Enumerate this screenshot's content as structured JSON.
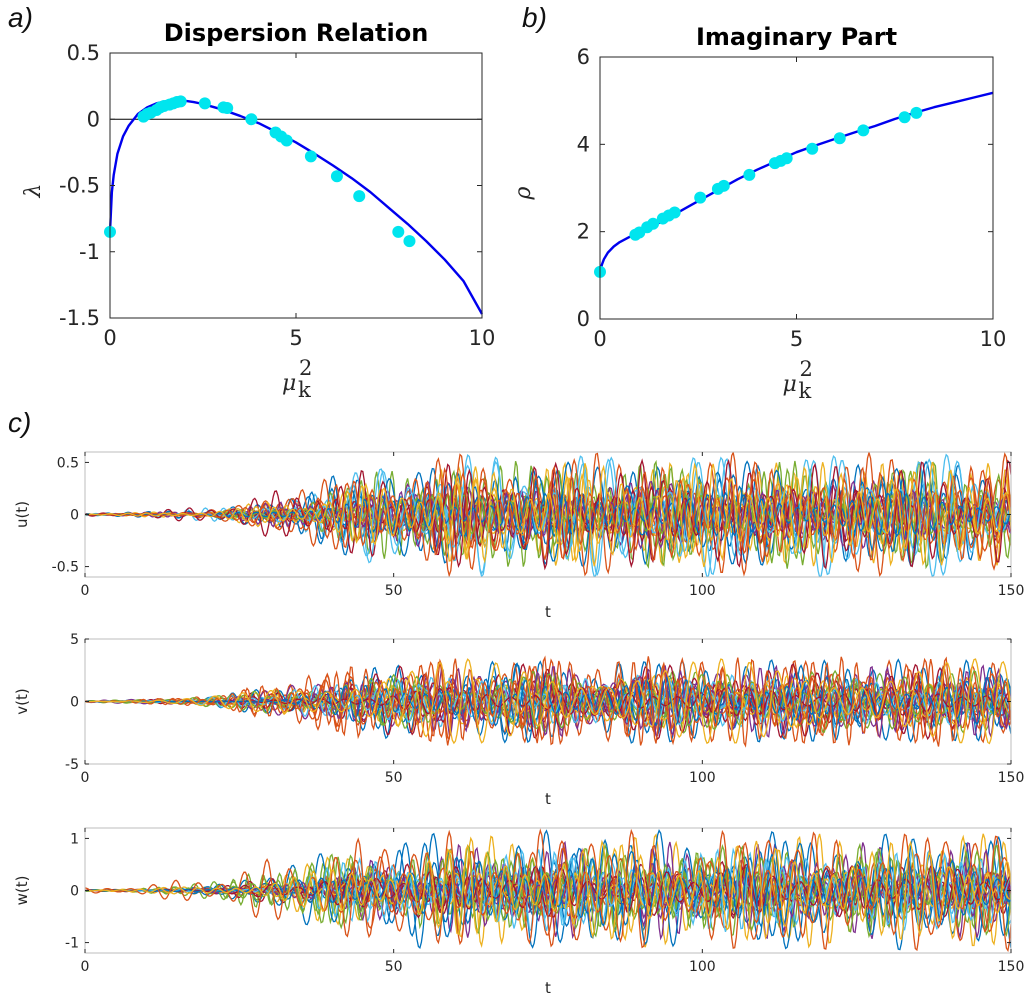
{
  "panel_labels": {
    "a": "a)",
    "b": "b)",
    "c": "c)"
  },
  "chart_data": [
    {
      "id": "a",
      "type": "line",
      "title": "Dispersion Relation",
      "xlabel": "μk2",
      "ylabel": "λ",
      "xlim": [
        0,
        10
      ],
      "ylim": [
        -1.5,
        0.5
      ],
      "xticks": [
        "0",
        "5",
        "10"
      ],
      "yticks": [
        "-1.5",
        "-1",
        "-0.5",
        "0",
        "0.5"
      ],
      "zero_line": true,
      "grid": false,
      "colors": {
        "curve": "#0000ee",
        "markers": "#00e5ee",
        "zero_line": "#000000"
      },
      "curve": {
        "x": [
          0,
          0.05,
          0.1,
          0.2,
          0.35,
          0.5,
          0.75,
          1.0,
          1.25,
          1.5,
          1.75,
          2.0,
          2.25,
          2.5,
          2.75,
          3.0,
          3.5,
          4.0,
          4.5,
          5.0,
          5.5,
          6.0,
          6.5,
          7.0,
          7.5,
          8.0,
          8.5,
          9.0,
          9.5,
          10.0
        ],
        "y": [
          -0.85,
          -0.55,
          -0.42,
          -0.26,
          -0.13,
          -0.05,
          0.04,
          0.09,
          0.12,
          0.135,
          0.14,
          0.14,
          0.13,
          0.115,
          0.095,
          0.075,
          0.025,
          -0.03,
          -0.1,
          -0.175,
          -0.26,
          -0.35,
          -0.445,
          -0.55,
          -0.67,
          -0.79,
          -0.92,
          -1.06,
          -1.22,
          -1.47
        ]
      },
      "markers": {
        "x": [
          0,
          0.9,
          1.0,
          1.1,
          1.25,
          1.35,
          1.45,
          1.6,
          1.7,
          1.8,
          1.9,
          2.55,
          3.05,
          3.15,
          3.8,
          4.45,
          4.6,
          4.75,
          5.4,
          6.1,
          6.7,
          7.75,
          8.05
        ],
        "y": [
          -0.85,
          0.02,
          0.04,
          0.05,
          0.07,
          0.09,
          0.1,
          0.11,
          0.12,
          0.13,
          0.135,
          0.12,
          0.09,
          0.085,
          0.0,
          -0.1,
          -0.13,
          -0.16,
          -0.28,
          -0.43,
          -0.58,
          -0.85,
          -0.92
        ]
      }
    },
    {
      "id": "b",
      "type": "line",
      "title": "Imaginary Part",
      "xlabel": "μk2",
      "ylabel": "ρ",
      "xlim": [
        0,
        10
      ],
      "ylim": [
        0,
        6
      ],
      "xticks": [
        "0",
        "5",
        "10"
      ],
      "yticks": [
        "0",
        "2",
        "4",
        "6"
      ],
      "grid": false,
      "colors": {
        "curve": "#0000ee",
        "markers": "#00e5ee"
      },
      "curve": {
        "x": [
          0,
          0.05,
          0.1,
          0.2,
          0.35,
          0.5,
          0.75,
          1.0,
          1.5,
          2.0,
          2.5,
          3.0,
          3.5,
          4.0,
          4.5,
          5.0,
          5.5,
          6.0,
          6.5,
          7.0,
          7.5,
          8.0,
          8.5,
          9.0,
          9.5,
          10.0
        ],
        "y": [
          1.08,
          1.25,
          1.37,
          1.52,
          1.66,
          1.76,
          1.88,
          1.98,
          2.2,
          2.45,
          2.7,
          2.95,
          3.2,
          3.42,
          3.62,
          3.82,
          3.98,
          4.13,
          4.28,
          4.42,
          4.58,
          4.72,
          4.85,
          4.96,
          5.07,
          5.18
        ]
      },
      "markers": {
        "x": [
          0,
          0.9,
          1.0,
          1.2,
          1.35,
          1.6,
          1.75,
          1.9,
          2.55,
          3.0,
          3.15,
          3.8,
          4.45,
          4.6,
          4.75,
          5.4,
          6.1,
          6.7,
          7.75,
          8.05
        ],
        "y": [
          1.08,
          1.93,
          1.98,
          2.1,
          2.18,
          2.3,
          2.37,
          2.44,
          2.78,
          2.98,
          3.05,
          3.3,
          3.57,
          3.62,
          3.68,
          3.9,
          4.14,
          4.32,
          4.62,
          4.72
        ]
      }
    },
    {
      "id": "c1",
      "type": "line",
      "title": "",
      "xlabel": "t",
      "ylabel": "u(t)",
      "xlim": [
        0,
        150
      ],
      "ylim": [
        -0.6,
        0.6
      ],
      "xticks": [
        "0",
        "50",
        "100",
        "150"
      ],
      "yticks": [
        "-0.5",
        "0",
        "0.5"
      ],
      "series_count": 24,
      "max_amplitude": 0.6,
      "growth_window_t": [
        20,
        45
      ],
      "colors": [
        "#0072bd",
        "#d95319",
        "#edb120",
        "#7e2f8e",
        "#77ac30",
        "#4dbeee",
        "#a2142f"
      ]
    },
    {
      "id": "c2",
      "type": "line",
      "title": "",
      "xlabel": "t",
      "ylabel": "v(t)",
      "xlim": [
        0,
        150
      ],
      "ylim": [
        -5,
        5
      ],
      "xticks": [
        "0",
        "50",
        "100",
        "150"
      ],
      "yticks": [
        "-5",
        "0",
        "5"
      ],
      "series_count": 24,
      "max_amplitude": 4.1,
      "growth_window_t": [
        20,
        45
      ],
      "colors": [
        "#0072bd",
        "#d95319",
        "#edb120",
        "#7e2f8e",
        "#77ac30",
        "#4dbeee",
        "#a2142f"
      ]
    },
    {
      "id": "c3",
      "type": "line",
      "title": "",
      "xlabel": "t",
      "ylabel": "w(t)",
      "xlim": [
        0,
        150
      ],
      "ylim": [
        -1.2,
        1.2
      ],
      "xticks": [
        "0",
        "50",
        "100",
        "150"
      ],
      "yticks": [
        "-1",
        "0",
        "1"
      ],
      "series_count": 24,
      "max_amplitude": 1.15,
      "growth_window_t": [
        20,
        45
      ],
      "colors": [
        "#0072bd",
        "#d95319",
        "#edb120",
        "#7e2f8e",
        "#77ac30",
        "#4dbeee",
        "#a2142f"
      ]
    }
  ]
}
